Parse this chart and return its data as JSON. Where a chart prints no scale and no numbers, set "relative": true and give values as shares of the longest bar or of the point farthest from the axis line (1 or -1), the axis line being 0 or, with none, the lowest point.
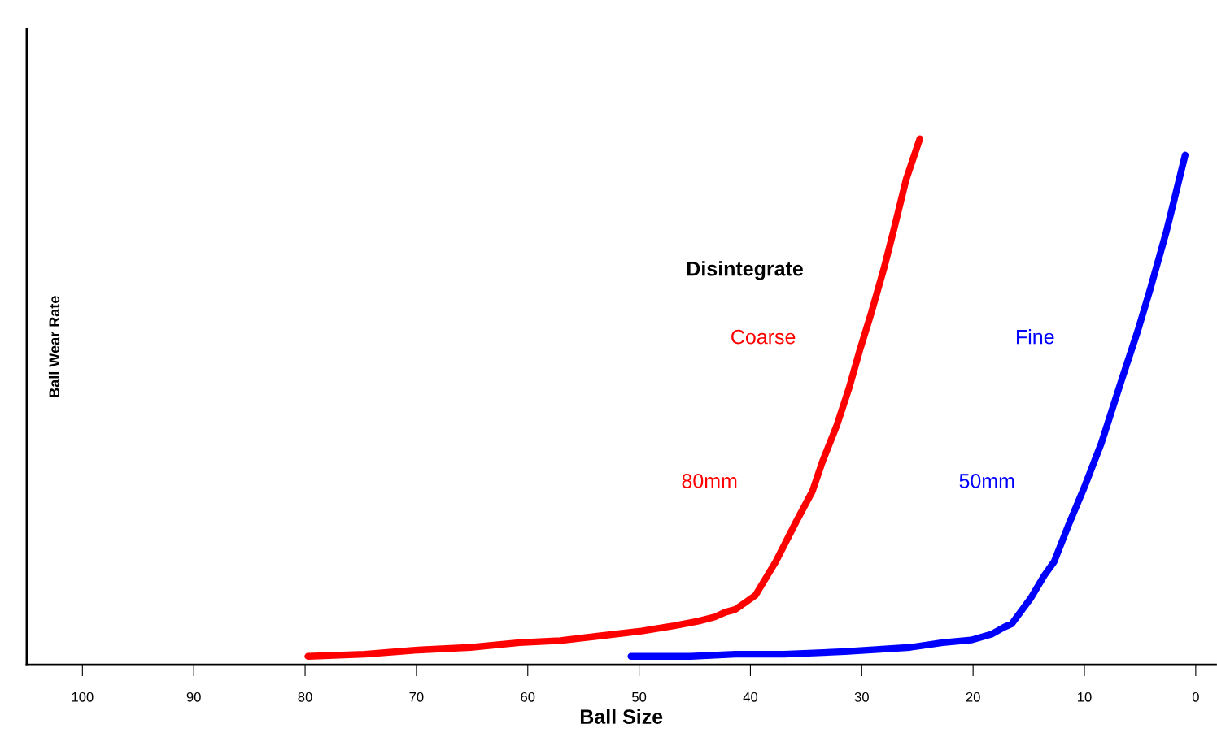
{
  "chart_data": {
    "type": "line",
    "relative": true,
    "xlabel": "Ball Size",
    "ylabel": "Ball Wear Rate",
    "xlim": [
      105,
      -1.8
    ],
    "xticks": [
      100,
      90,
      80,
      70,
      60,
      50,
      40,
      30,
      20,
      10,
      0
    ],
    "grid": false,
    "legend": false,
    "marker": "none",
    "line_style": "solid",
    "annotations": [
      "Disintegrate",
      "80mm",
      "50mm"
    ],
    "series": [
      {
        "name": "Coarse",
        "color": "#ff0000",
        "x": [
          79.75,
          74.63,
          69.88,
          65.13,
          60.75,
          57.09,
          53.44,
          49.78,
          46.86,
          44.66,
          43.2,
          42.25,
          41.37,
          40.42,
          39.55,
          37.72,
          35.89,
          34.43,
          33.55,
          32.24,
          31.14,
          30.19,
          29.17,
          28.0,
          27.12,
          26.02,
          24.78
        ],
        "values": [
          0.016,
          0.02,
          0.028,
          0.033,
          0.042,
          0.046,
          0.055,
          0.064,
          0.074,
          0.083,
          0.091,
          0.1,
          0.105,
          0.119,
          0.132,
          0.196,
          0.272,
          0.33,
          0.385,
          0.455,
          0.526,
          0.597,
          0.667,
          0.754,
          0.827,
          0.922,
          1.0
        ]
      },
      {
        "name": "Fine",
        "color": "#0000ff",
        "x": [
          50.73,
          45.39,
          41.37,
          36.99,
          31.51,
          25.66,
          22.73,
          20.18,
          18.35,
          17.25,
          16.52,
          14.84,
          13.6,
          12.72,
          11.4,
          9.94,
          8.48,
          6.65,
          5.19,
          4.09,
          2.63,
          0.95
        ],
        "values": [
          0.016,
          0.016,
          0.02,
          0.02,
          0.025,
          0.033,
          0.042,
          0.047,
          0.058,
          0.071,
          0.078,
          0.126,
          0.17,
          0.196,
          0.267,
          0.341,
          0.421,
          0.542,
          0.636,
          0.714,
          0.824,
          0.969
        ]
      }
    ]
  }
}
